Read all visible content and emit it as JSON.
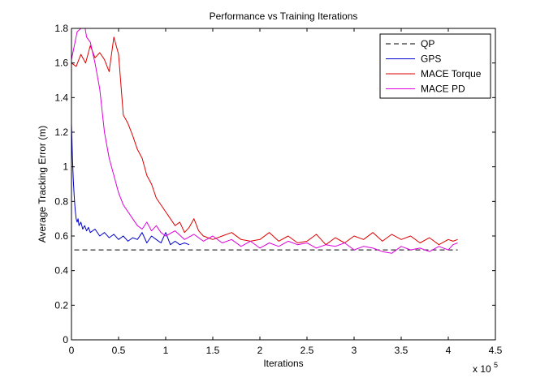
{
  "chart_data": {
    "type": "line",
    "title": "Performance vs Training Iterations",
    "xlabel": "Iterations",
    "ylabel": "Average Tracking Error (m)",
    "x_multiplier_label": "x 10",
    "x_multiplier_exponent": "5",
    "xlim": [
      0,
      4.5
    ],
    "ylim": [
      0,
      1.8
    ],
    "xticks": [
      0,
      0.5,
      1,
      1.5,
      2,
      2.5,
      3,
      3.5,
      4,
      4.5
    ],
    "xtick_labels": [
      "0",
      "0.5",
      "1",
      "1.5",
      "2",
      "2.5",
      "3",
      "3.5",
      "4",
      "4.5"
    ],
    "yticks": [
      0,
      0.2,
      0.4,
      0.6,
      0.8,
      1,
      1.2,
      1.4,
      1.6,
      1.8
    ],
    "ytick_labels": [
      "0",
      "0.2",
      "0.4",
      "0.6",
      "0.8",
      "1",
      "1.2",
      "1.4",
      "1.6",
      "1.8"
    ],
    "grid": false,
    "legend_position": "top-right",
    "series": [
      {
        "name": "QP",
        "color": "#000000",
        "dashed": true,
        "x": [
          0.03,
          4.1
        ],
        "y": [
          0.52,
          0.52
        ]
      },
      {
        "name": "GPS",
        "color": "#0000cc",
        "dashed": false,
        "x": [
          0.0,
          0.01,
          0.02,
          0.03,
          0.04,
          0.05,
          0.06,
          0.07,
          0.08,
          0.1,
          0.12,
          0.14,
          0.16,
          0.18,
          0.2,
          0.25,
          0.3,
          0.35,
          0.4,
          0.45,
          0.5,
          0.55,
          0.6,
          0.65,
          0.7,
          0.75,
          0.8,
          0.85,
          0.9,
          0.95,
          1.0,
          1.05,
          1.1,
          1.15,
          1.2,
          1.25
        ],
        "y": [
          1.25,
          1.05,
          0.92,
          0.82,
          0.75,
          0.7,
          0.68,
          0.7,
          0.66,
          0.68,
          0.64,
          0.66,
          0.63,
          0.65,
          0.62,
          0.64,
          0.6,
          0.62,
          0.59,
          0.61,
          0.58,
          0.6,
          0.57,
          0.59,
          0.58,
          0.62,
          0.56,
          0.6,
          0.58,
          0.56,
          0.62,
          0.55,
          0.57,
          0.55,
          0.56,
          0.55
        ]
      },
      {
        "name": "MACE Torque",
        "color": "#dd0000",
        "dashed": false,
        "x": [
          0.0,
          0.05,
          0.1,
          0.15,
          0.2,
          0.25,
          0.3,
          0.35,
          0.4,
          0.45,
          0.5,
          0.55,
          0.6,
          0.65,
          0.7,
          0.75,
          0.8,
          0.85,
          0.9,
          0.95,
          1.0,
          1.05,
          1.1,
          1.15,
          1.2,
          1.25,
          1.3,
          1.35,
          1.4,
          1.5,
          1.6,
          1.7,
          1.8,
          1.9,
          2.0,
          2.1,
          2.2,
          2.3,
          2.4,
          2.5,
          2.6,
          2.7,
          2.8,
          2.9,
          3.0,
          3.1,
          3.2,
          3.3,
          3.4,
          3.5,
          3.6,
          3.7,
          3.8,
          3.9,
          4.0,
          4.05,
          4.1
        ],
        "y": [
          1.6,
          1.58,
          1.65,
          1.6,
          1.7,
          1.63,
          1.66,
          1.62,
          1.55,
          1.75,
          1.65,
          1.3,
          1.25,
          1.18,
          1.1,
          1.05,
          0.95,
          0.9,
          0.82,
          0.78,
          0.74,
          0.7,
          0.66,
          0.68,
          0.62,
          0.65,
          0.7,
          0.63,
          0.6,
          0.58,
          0.6,
          0.62,
          0.58,
          0.57,
          0.58,
          0.62,
          0.57,
          0.6,
          0.56,
          0.57,
          0.61,
          0.55,
          0.59,
          0.56,
          0.6,
          0.58,
          0.62,
          0.57,
          0.61,
          0.58,
          0.6,
          0.56,
          0.59,
          0.55,
          0.58,
          0.57,
          0.58
        ]
      },
      {
        "name": "MACE PD",
        "color": "#dd00dd",
        "dashed": false,
        "x": [
          0.0,
          0.03,
          0.06,
          0.1,
          0.13,
          0.16,
          0.2,
          0.25,
          0.3,
          0.35,
          0.4,
          0.45,
          0.5,
          0.55,
          0.6,
          0.65,
          0.7,
          0.75,
          0.8,
          0.85,
          0.9,
          0.95,
          1.0,
          1.1,
          1.2,
          1.3,
          1.4,
          1.5,
          1.6,
          1.7,
          1.8,
          1.9,
          2.0,
          2.1,
          2.2,
          2.3,
          2.4,
          2.5,
          2.6,
          2.7,
          2.8,
          2.9,
          3.0,
          3.1,
          3.2,
          3.3,
          3.4,
          3.5,
          3.6,
          3.7,
          3.8,
          3.9,
          4.0,
          4.05,
          4.1
        ],
        "y": [
          1.62,
          1.7,
          1.78,
          1.8,
          1.85,
          1.75,
          1.72,
          1.6,
          1.45,
          1.2,
          1.05,
          0.95,
          0.85,
          0.78,
          0.74,
          0.7,
          0.66,
          0.64,
          0.68,
          0.63,
          0.66,
          0.62,
          0.6,
          0.63,
          0.58,
          0.61,
          0.57,
          0.6,
          0.56,
          0.58,
          0.54,
          0.57,
          0.53,
          0.56,
          0.54,
          0.57,
          0.55,
          0.56,
          0.53,
          0.55,
          0.54,
          0.56,
          0.52,
          0.54,
          0.53,
          0.51,
          0.5,
          0.54,
          0.52,
          0.53,
          0.51,
          0.54,
          0.52,
          0.55,
          0.56
        ]
      }
    ]
  }
}
